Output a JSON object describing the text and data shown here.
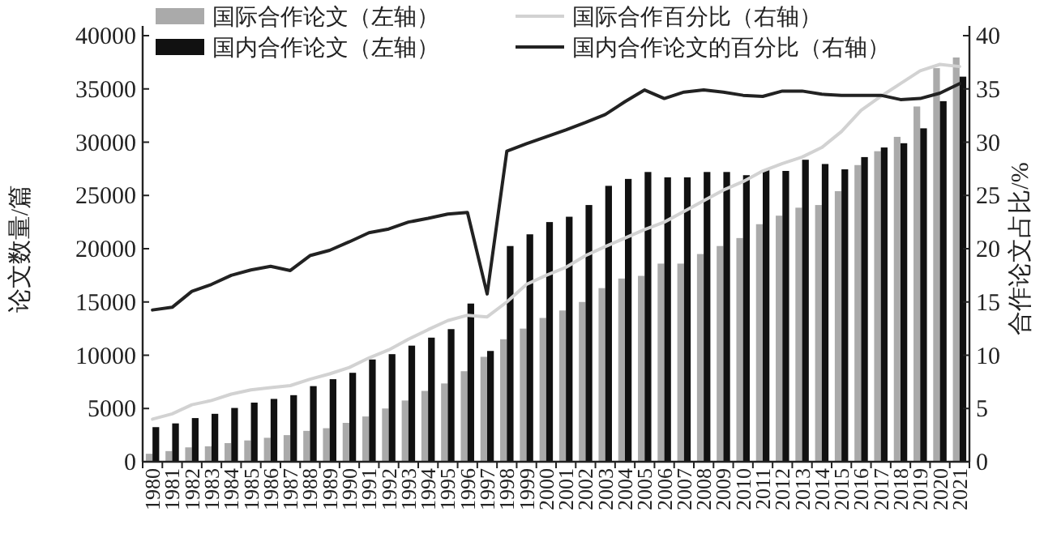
{
  "chart_data": {
    "type": "bar",
    "ylabel": "论文数量/篇",
    "y2label": "合作论文占比/%",
    "legend": "top left",
    "grid": false,
    "categories": [
      "1980",
      "1981",
      "1982",
      "1983",
      "1984",
      "1985",
      "1986",
      "1987",
      "1988",
      "1989",
      "1990",
      "1991",
      "1992",
      "1993",
      "1994",
      "1995",
      "1996",
      "1997",
      "1998",
      "1999",
      "2000",
      "2001",
      "2002",
      "2003",
      "2004",
      "2005",
      "2006",
      "2007",
      "2008",
      "2009",
      "2010",
      "2011",
      "2012",
      "2013",
      "2014",
      "2015",
      "2016",
      "2017",
      "2018",
      "2019",
      "2020",
      "2021"
    ],
    "series": [
      {
        "name": "国际合作论文（左轴）",
        "color": "#aaaaaa",
        "values": [
          750,
          1000,
          1350,
          1450,
          1750,
          2000,
          2250,
          2500,
          2900,
          3150,
          3650,
          4250,
          5000,
          5750,
          6650,
          7350,
          8500,
          9850,
          11500,
          12500,
          13500,
          14200,
          15000,
          16300,
          17200,
          17450,
          18600,
          18600,
          19500,
          20250,
          21000,
          22300,
          23100,
          23850,
          24100,
          25400,
          27850,
          29150,
          30500,
          33350,
          36950,
          37950
        ]
      },
      {
        "name": "国内合作论文（左轴）",
        "color": "#111111",
        "values": [
          3250,
          3600,
          4100,
          4500,
          5050,
          5550,
          5900,
          6250,
          7100,
          7750,
          8350,
          9600,
          10100,
          10900,
          11650,
          12450,
          14850,
          10400,
          20250,
          21350,
          22500,
          23000,
          24100,
          25900,
          26550,
          27200,
          26700,
          26700,
          27200,
          27200,
          26900,
          27450,
          27300,
          28350,
          27950,
          27450,
          28600,
          29500,
          29900,
          31300,
          33850,
          36150
        ]
      },
      {
        "name": "国际合作百分比（右轴）",
        "type": "line",
        "axis": "y2",
        "color": "#d2d2d2",
        "values": [
          4.0,
          4.5,
          5.35,
          5.75,
          6.35,
          6.75,
          6.95,
          7.15,
          7.75,
          8.25,
          8.85,
          9.75,
          10.5,
          11.5,
          12.4,
          13.25,
          13.75,
          13.6,
          15.0,
          16.65,
          17.5,
          18.25,
          19.35,
          20.2,
          21.0,
          21.8,
          22.5,
          23.5,
          24.5,
          25.5,
          26.3,
          27.3,
          28.0,
          28.6,
          29.5,
          31.0,
          33.0,
          34.3,
          35.5,
          36.7,
          37.3,
          37.1
        ]
      },
      {
        "name": "国内合作论文的百分比（右轴）",
        "type": "line",
        "axis": "y2",
        "color": "#222222",
        "values": [
          14.25,
          14.5,
          16.0,
          16.65,
          17.5,
          18.0,
          18.35,
          17.95,
          19.35,
          19.85,
          20.65,
          21.5,
          21.85,
          22.5,
          22.85,
          23.25,
          23.4,
          15.75,
          29.15,
          29.85,
          30.5,
          31.15,
          31.85,
          32.6,
          33.8,
          34.9,
          34.1,
          34.7,
          34.9,
          34.7,
          34.4,
          34.3,
          34.8,
          34.8,
          34.5,
          34.4,
          34.4,
          34.4,
          34.0,
          34.1,
          34.6,
          35.5
        ]
      }
    ],
    "ylim": [
      0,
      40000
    ],
    "yticks": [
      0,
      5000,
      10000,
      15000,
      20000,
      25000,
      30000,
      35000,
      40000
    ],
    "y2lim": [
      0,
      40
    ],
    "y2ticks": [
      0,
      5,
      10,
      15,
      20,
      25,
      30,
      35,
      40
    ]
  }
}
